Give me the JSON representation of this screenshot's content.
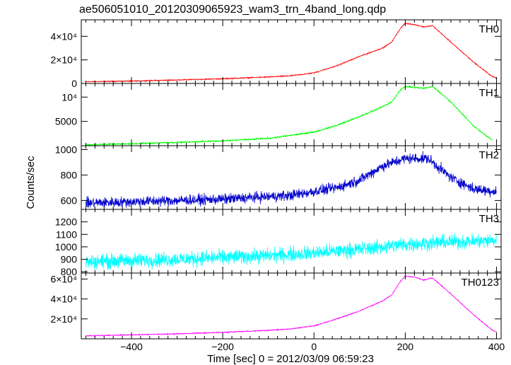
{
  "chart_data": {
    "type": "line",
    "title": "ae506051010_20120309065923_wam3_trn_4band_long.qdp",
    "xlabel": "Time [sec] 0 = 2012/03/09 06:59:23",
    "ylabel": "Counts/sec",
    "xlim": [
      -510,
      410
    ],
    "x_ticks": [
      -400,
      -200,
      0,
      200,
      400
    ],
    "panels": [
      {
        "name": "TH0",
        "color": "#ff0000",
        "ylim": [
          0,
          54000
        ],
        "y_ticks": [
          {
            "value": 0,
            "label": "0"
          },
          {
            "value": 20000,
            "label": "2×10⁴"
          },
          {
            "value": 40000,
            "label": "4×10⁴"
          }
        ],
        "noise": 350,
        "x": [
          -500,
          -400,
          -300,
          -200,
          -100,
          -50,
          0,
          50,
          100,
          150,
          170,
          190,
          200,
          220,
          240,
          260,
          300,
          350,
          390,
          400
        ],
        "values": [
          1500,
          2000,
          3000,
          4000,
          5500,
          6500,
          9000,
          15000,
          23000,
          30000,
          35000,
          47000,
          51000,
          50000,
          48000,
          49000,
          35000,
          18000,
          6000,
          4500
        ]
      },
      {
        "name": "TH1",
        "color": "#00ff00",
        "ylim": [
          0,
          12800
        ],
        "y_ticks": [
          {
            "value": 5000,
            "label": "5000"
          },
          {
            "value": 10000,
            "label": "10⁴"
          }
        ],
        "noise": 120,
        "x": [
          -500,
          -400,
          -300,
          -200,
          -100,
          0,
          50,
          100,
          150,
          170,
          190,
          200,
          220,
          240,
          260,
          300,
          350,
          390
        ],
        "values": [
          200,
          400,
          700,
          1000,
          1500,
          2800,
          4200,
          6000,
          8000,
          9000,
          11500,
          12200,
          12000,
          11800,
          12200,
          9000,
          4000,
          1200
        ]
      },
      {
        "name": "TH2",
        "color": "#0000cc",
        "ylim": [
          530,
          1030
        ],
        "y_ticks": [
          {
            "value": 600,
            "label": "600"
          },
          {
            "value": 800,
            "label": "800"
          },
          {
            "value": 1000,
            "label": "1000"
          }
        ],
        "noise": 35,
        "x": [
          -500,
          -400,
          -200,
          -50,
          50,
          100,
          150,
          200,
          250,
          300,
          350,
          400
        ],
        "values": [
          580,
          590,
          610,
          640,
          700,
          760,
          870,
          930,
          930,
          780,
          690,
          670
        ]
      },
      {
        "name": "TH3",
        "color": "#00ffff",
        "ylim": [
          790,
          1300
        ],
        "y_ticks": [
          {
            "value": 800,
            "label": "800"
          },
          {
            "value": 900,
            "label": "900"
          },
          {
            "value": 1000,
            "label": "1000"
          },
          {
            "value": 1100,
            "label": "1100"
          },
          {
            "value": 1200,
            "label": "1200"
          }
        ],
        "noise": 50,
        "x": [
          -500,
          -300,
          -100,
          0,
          100,
          200,
          300,
          400
        ],
        "values": [
          880,
          900,
          930,
          950,
          980,
          1020,
          1040,
          1050
        ]
      },
      {
        "name": "TH0123",
        "color": "#ff00ff",
        "ylim": [
          0,
          66000
        ],
        "y_ticks": [
          {
            "value": 20000,
            "label": "2×10⁴"
          },
          {
            "value": 40000,
            "label": "4×10⁴"
          },
          {
            "value": 60000,
            "label": "6×10⁴"
          }
        ],
        "noise": 400,
        "x": [
          -500,
          -400,
          -300,
          -200,
          -100,
          -50,
          0,
          50,
          100,
          150,
          170,
          190,
          200,
          220,
          240,
          260,
          300,
          350,
          390,
          400
        ],
        "values": [
          3000,
          4000,
          5000,
          6500,
          8500,
          10000,
          13000,
          20000,
          28000,
          38000,
          44000,
          58000,
          63000,
          62000,
          59000,
          61000,
          45000,
          24000,
          9000,
          7000
        ]
      }
    ]
  }
}
